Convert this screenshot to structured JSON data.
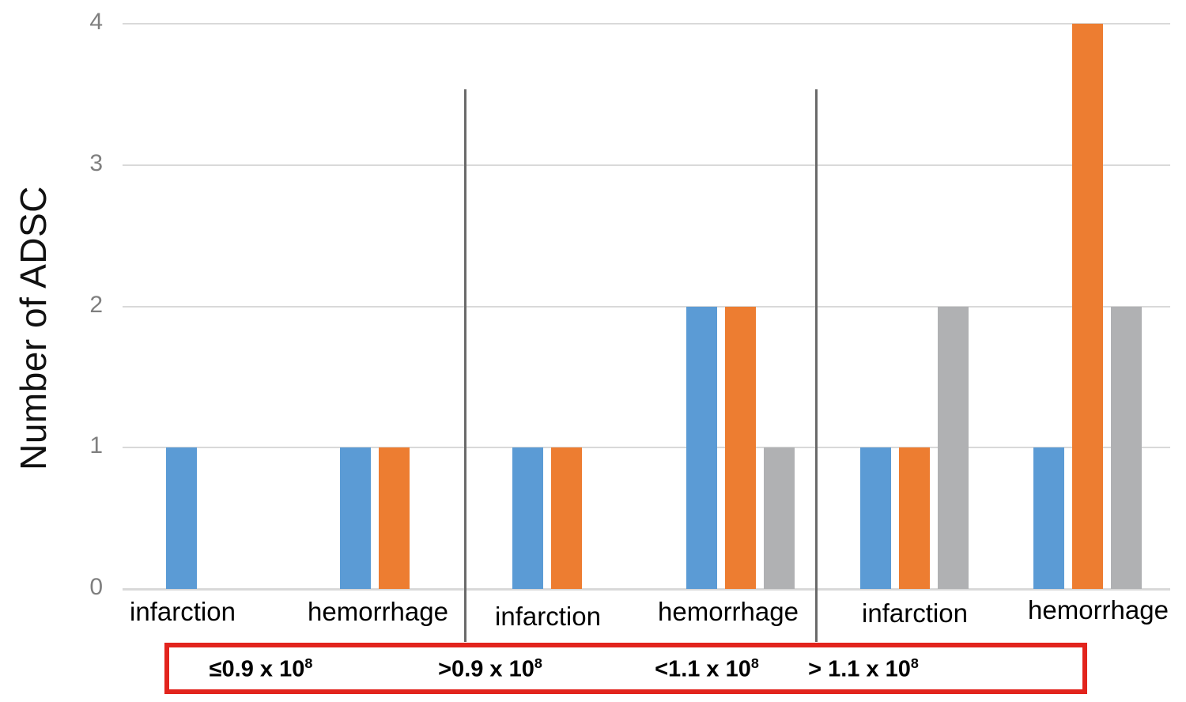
{
  "chart_data": {
    "type": "bar",
    "title": "",
    "xlabel": "",
    "ylabel": "Number of ADSC",
    "ylim": [
      0,
      4
    ],
    "yticks": [
      0,
      1,
      2,
      3,
      4
    ],
    "grid": true,
    "legend_position": "none",
    "categories": [
      "infarction",
      "hemorrhage",
      "infarction",
      "hemorrhage",
      "infarction",
      "hemorrhage"
    ],
    "series": [
      {
        "name": "blue",
        "color": "#5B9BD5",
        "values": [
          1,
          1,
          1,
          2,
          1,
          1
        ]
      },
      {
        "name": "orange",
        "color": "#ED7D31",
        "values": [
          0,
          1,
          1,
          2,
          1,
          4
        ]
      },
      {
        "name": "gray",
        "color": "#B0B1B3",
        "values": [
          0,
          0,
          0,
          1,
          2,
          2
        ]
      }
    ],
    "group_divider_count": 2,
    "dose_group_labels": [
      {
        "base": "≤0.9 x 10",
        "exp": "8"
      },
      {
        "base": ">0.9 x 10",
        "exp": "8"
      },
      {
        "base": "<1.1 x 10",
        "exp": "8"
      },
      {
        "base": "> 1.1 x 10",
        "exp": "8"
      }
    ],
    "colors": {
      "gridline": "#D9D9D9",
      "tick_label": "#7F7F7F",
      "divider": "#6A6A6A",
      "dose_box_border": "#E2241D",
      "axis_title": "#111111",
      "category_label": "#000000"
    }
  }
}
